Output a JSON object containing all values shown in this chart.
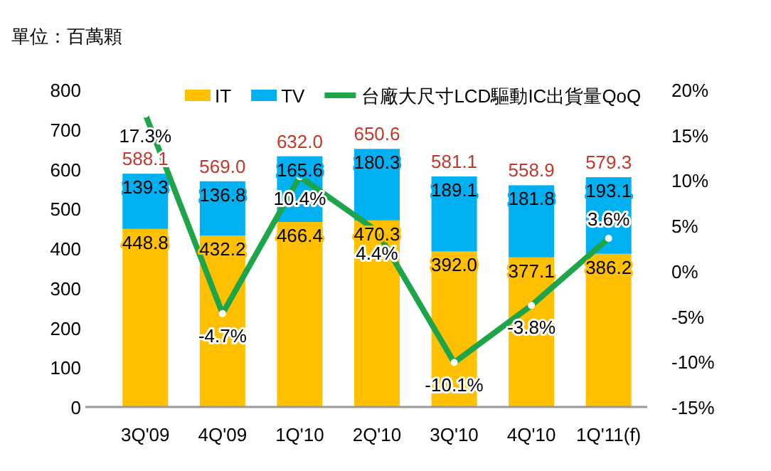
{
  "chart_data": {
    "type": "bar",
    "stacked": true,
    "ylabel": "單位：百萬顆",
    "categories": [
      "3Q'09",
      "4Q'09",
      "1Q'10",
      "2Q'10",
      "3Q'10",
      "4Q'10",
      "1Q'11(f)"
    ],
    "series": [
      {
        "name": "IT",
        "color": "#ffc000",
        "values": [
          448.8,
          432.2,
          466.4,
          470.3,
          392.0,
          377.1,
          386.2
        ],
        "value_labels": [
          "448.8",
          "432.2",
          "466.4",
          "470.3",
          "392.0",
          "377.1",
          "386.2"
        ]
      },
      {
        "name": "TV",
        "color": "#00b0f0",
        "values": [
          139.3,
          136.8,
          165.6,
          180.3,
          189.1,
          181.8,
          193.1
        ],
        "value_labels": [
          "139.3",
          "136.8",
          "165.6",
          "180.3",
          "189.1",
          "181.8",
          "193.1"
        ]
      },
      {
        "name": "台廠大尺寸LCD驅動IC出貨量QoQ",
        "type": "line",
        "axis": "y2",
        "color": "#1ea54a",
        "marker": "circle",
        "values": [
          17.3,
          -4.7,
          10.4,
          4.4,
          -10.1,
          -3.8,
          3.6
        ],
        "value_labels": [
          "17.3%",
          "-4.7%",
          "10.4%",
          "4.4%",
          "-10.1%",
          "-3.8%",
          "3.6%"
        ]
      }
    ],
    "totals": [
      "588.1",
      "569.0",
      "632.0",
      "650.6",
      "581.1",
      "558.9",
      "579.3"
    ],
    "ylim": [
      0,
      800
    ],
    "yticks": [
      0,
      100,
      200,
      300,
      400,
      500,
      600,
      700,
      800
    ],
    "y2lim": [
      -15,
      20
    ],
    "y2ticks": [
      {
        "value": -15,
        "label": "-15%"
      },
      {
        "value": -10,
        "label": "-10%"
      },
      {
        "value": -5,
        "label": "-5%"
      },
      {
        "value": 0,
        "label": "0%"
      },
      {
        "value": 5,
        "label": "5%"
      },
      {
        "value": 10,
        "label": "10%"
      },
      {
        "value": 15,
        "label": "15%"
      },
      {
        "value": 20,
        "label": "20%"
      }
    ],
    "legend": "top",
    "grid": false
  }
}
